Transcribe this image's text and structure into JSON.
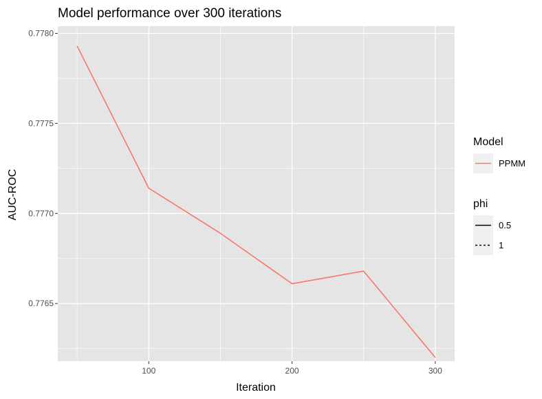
{
  "chart_data": {
    "type": "line",
    "title": "Model performance over 300 iterations",
    "xlabel": "Iteration",
    "ylabel": "AUC-ROC",
    "x_ticks": [
      100,
      200,
      300
    ],
    "x_tick_labels": [
      "100",
      "200",
      "300"
    ],
    "y_ticks": [
      0.7765,
      0.777,
      0.7775,
      0.778
    ],
    "y_tick_labels": [
      "0.7765",
      "0.7770",
      "0.7775",
      "0.7780"
    ],
    "xlim": [
      36.5,
      313.5
    ],
    "ylim": [
      0.77618,
      0.77804
    ],
    "grid": true,
    "legend_position": "right",
    "legends": [
      {
        "title": "Model",
        "entries": [
          {
            "label": "PPMM",
            "color": "#f8766d",
            "line_style": "solid"
          }
        ]
      },
      {
        "title": "phi",
        "entries": [
          {
            "label": "0.5",
            "color": "#000000",
            "line_style": "solid"
          },
          {
            "label": "1",
            "color": "#000000",
            "line_style": "dashed"
          }
        ]
      }
    ],
    "series": [
      {
        "name": "PPMM",
        "phi": "0.5",
        "color": "#f8766d",
        "x": [
          50,
          100,
          150,
          200,
          250,
          300
        ],
        "y": [
          0.77793,
          0.77714,
          0.77689,
          0.77661,
          0.77668,
          0.7762
        ]
      }
    ]
  },
  "colors": {
    "panel_background": "#e5e5e5",
    "gridline": "#ffffff",
    "series_line": "#f8766d",
    "legend_key_background": "#f0f0f0"
  }
}
